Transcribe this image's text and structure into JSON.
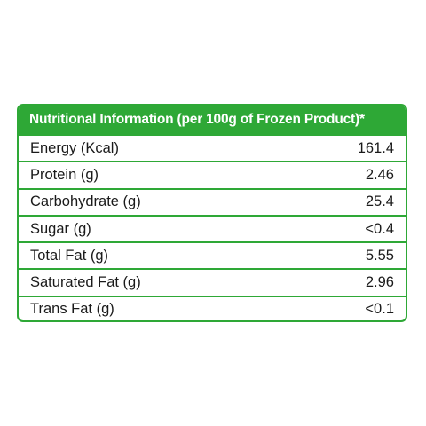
{
  "table": {
    "header": "Nutritional Information (per 100g of Frozen Product)*",
    "rows": [
      {
        "label": "Energy (Kcal)",
        "value": "161.4"
      },
      {
        "label": "Protein (g)",
        "value": "2.46"
      },
      {
        "label": "Carbohydrate (g)",
        "value": "25.4"
      },
      {
        "label": "Sugar (g)",
        "value": "<0.4"
      },
      {
        "label": "Total Fat (g)",
        "value": "5.55"
      },
      {
        "label": "Saturated Fat (g)",
        "value": "2.96"
      },
      {
        "label": "Trans Fat (g)",
        "value": "<0.1"
      }
    ]
  },
  "colors": {
    "accent": "#2ea836",
    "text": "#1a1a1a",
    "header_text": "#ffffff"
  }
}
